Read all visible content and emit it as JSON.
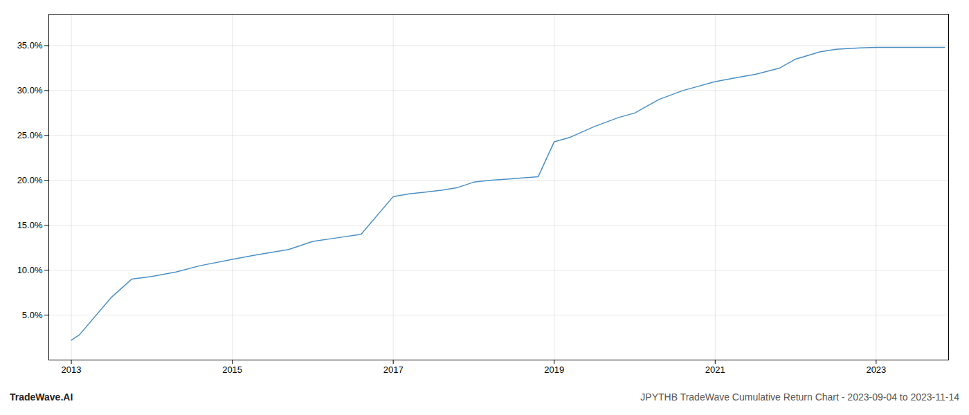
{
  "chart_data": {
    "type": "line",
    "x": [
      2013.0,
      2013.1,
      2013.5,
      2013.75,
      2014.0,
      2014.3,
      2014.6,
      2015.0,
      2015.3,
      2015.7,
      2016.0,
      2016.3,
      2016.6,
      2017.0,
      2017.2,
      2017.4,
      2017.6,
      2017.8,
      2018.0,
      2018.2,
      2018.5,
      2018.8,
      2019.0,
      2019.2,
      2019.5,
      2019.8,
      2020.0,
      2020.3,
      2020.6,
      2021.0,
      2021.3,
      2021.5,
      2021.8,
      2022.0,
      2022.3,
      2022.5,
      2022.8,
      2023.0,
      2023.5,
      2023.85
    ],
    "values": [
      2.2,
      2.8,
      7.0,
      9.0,
      9.3,
      9.8,
      10.5,
      11.2,
      11.7,
      12.3,
      13.2,
      13.6,
      14.0,
      18.2,
      18.5,
      18.7,
      18.9,
      19.2,
      19.8,
      20.0,
      20.2,
      20.4,
      24.3,
      24.8,
      26.0,
      27.0,
      27.5,
      29.0,
      30.0,
      31.0,
      31.5,
      31.8,
      32.5,
      33.5,
      34.3,
      34.6,
      34.75,
      34.8,
      34.8,
      34.8
    ],
    "color": "#4a8fc4",
    "xlim": [
      2012.72,
      2023.9
    ],
    "xticks": [
      2013,
      2015,
      2017,
      2019,
      2021,
      2023
    ],
    "ylim": [
      0.0,
      38.5
    ],
    "yticks": [
      {
        "value": 5.0,
        "label": "5.0%"
      },
      {
        "value": 10.0,
        "label": "10.0%"
      },
      {
        "value": 15.0,
        "label": "15.0%"
      },
      {
        "value": 20.0,
        "label": "20.0%"
      },
      {
        "value": 25.0,
        "label": "25.0%"
      },
      {
        "value": 30.0,
        "label": "30.0%"
      },
      {
        "value": 35.0,
        "label": "35.0%"
      }
    ],
    "grid": true,
    "annotations": [
      "TradeWave.AI",
      "JPYTHB TradeWave Cumulative Return Chart - 2023-09-04 to 2023-11-14"
    ]
  }
}
